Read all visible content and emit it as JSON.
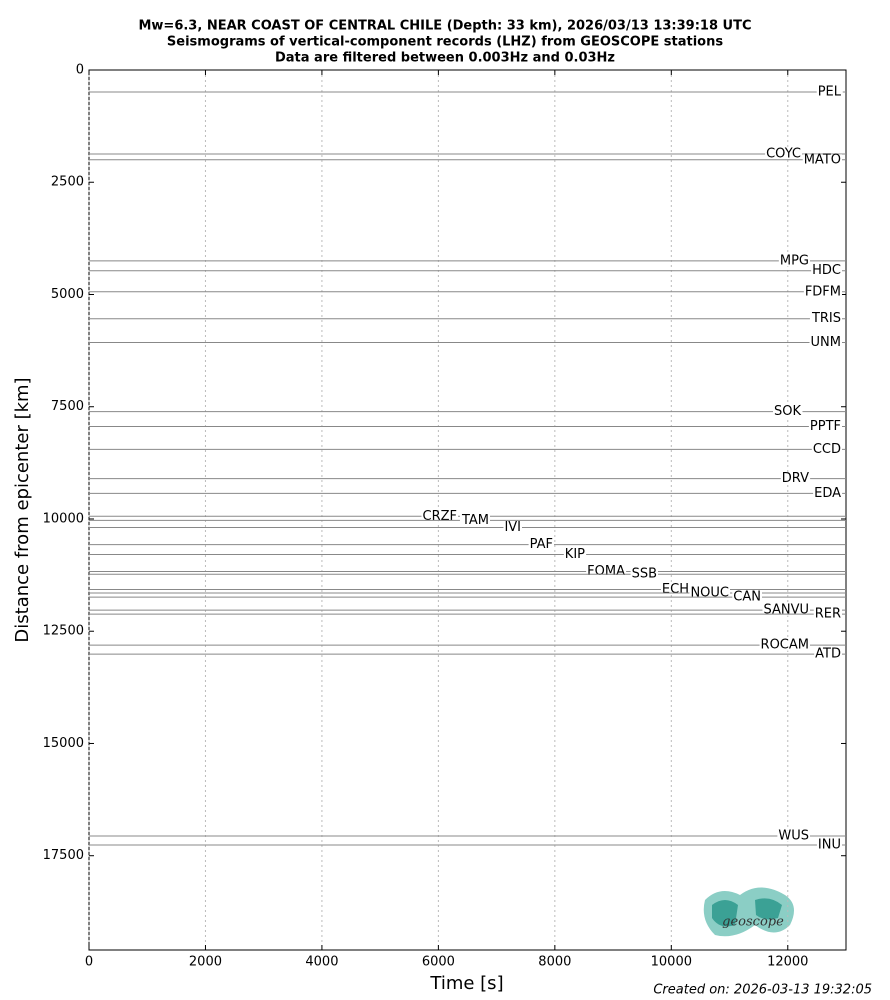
{
  "chart_data": {
    "type": "record_section",
    "title": [
      "Mw=6.3, NEAR COAST OF CENTRAL CHILE (Depth: 33 km), 2026/03/13 13:39:18 UTC",
      "Seismograms of vertical-component records (LHZ) from GEOSCOPE stations",
      "Data are filtered between 0.003Hz and 0.03Hz"
    ],
    "x_label": "Time [s]",
    "y_label": "Distance from epicenter [km]",
    "categories": [
      "PEL",
      "COYC",
      "MATO",
      "MPG",
      "HDC",
      "FDFM",
      "TRIS",
      "UNM",
      "SOK",
      "PPTF",
      "CCD",
      "DRV",
      "EDA",
      "CRZF",
      "TAM",
      "IVI",
      "PAF",
      "KIP",
      "FOMA",
      "SSB",
      "ECH",
      "NOUC",
      "CAN",
      "SANVU",
      "RER",
      "ROCAM",
      "ATD",
      "WUS",
      "INU"
    ],
    "values": [
      490,
      1870,
      2000,
      4250,
      4470,
      4940,
      5540,
      6070,
      7610,
      7940,
      8450,
      9100,
      9430,
      9940,
      10030,
      10190,
      10570,
      10790,
      11170,
      11230,
      11570,
      11650,
      11740,
      12030,
      12120,
      12810,
      13010,
      17060,
      17260
    ],
    "color": "#888888",
    "xlim": [
      0,
      13000
    ],
    "xticks": [
      0,
      2000,
      4000,
      6000,
      8000,
      10000,
      12000
    ],
    "ylim": [
      0,
      19600
    ],
    "yticks": [
      0,
      2500,
      5000,
      7500,
      10000,
      12500,
      15000,
      17500
    ],
    "y_inverted": true,
    "grid_x": true,
    "footer": "Created on: 2026-03-13 19:32:05",
    "logo": "geoscope"
  }
}
